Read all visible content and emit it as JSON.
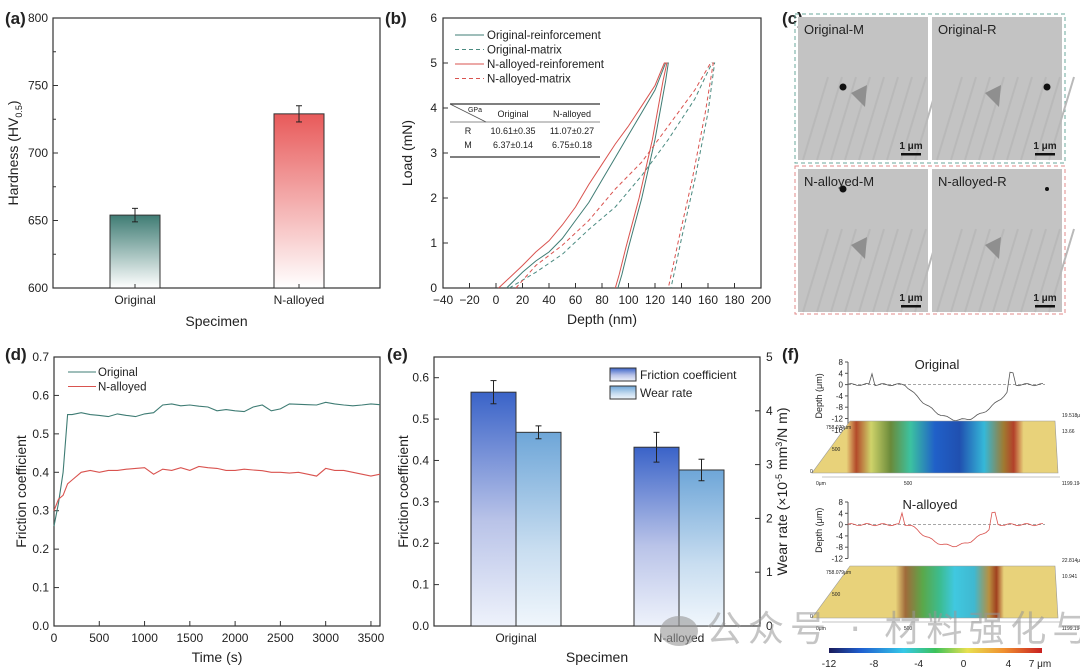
{
  "chart_data": [
    {
      "panel": "(a)",
      "type": "bar",
      "categories": [
        "Original",
        "N-alloyed"
      ],
      "values": [
        654,
        729
      ],
      "errors": [
        5,
        6
      ],
      "colors": [
        "#3f7c74",
        "#e85a5a"
      ],
      "xlabel": "Specimen",
      "ylabel": "Hardness (HV",
      "ylabel_sub": "0.5",
      "ylabel_end": ")",
      "ylim": [
        600,
        800
      ],
      "yticks": [
        "600",
        "650",
        "700",
        "750",
        "800"
      ]
    },
    {
      "panel": "(b)",
      "type": "line",
      "xlabel": "Depth (nm)",
      "ylabel": "Load (mN)",
      "xlim": [
        -40,
        200
      ],
      "ylim": [
        0,
        6
      ],
      "xticks": [
        "-40",
        "-20",
        "0",
        "20",
        "40",
        "60",
        "80",
        "100",
        "120",
        "140",
        "160",
        "180",
        "200"
      ],
      "yticks": [
        "0",
        "1",
        "2",
        "3",
        "4",
        "5",
        "6"
      ],
      "series": [
        {
          "name": "Original-reinforcement",
          "color": "#3f7c74",
          "dash": false,
          "x": [
            8,
            20,
            30,
            40,
            50,
            60,
            70,
            80,
            90,
            100,
            110,
            120,
            128,
            130,
            128,
            120,
            110,
            100,
            95,
            92
          ],
          "y": [
            0,
            0.35,
            0.6,
            0.8,
            1.1,
            1.5,
            1.9,
            2.4,
            2.9,
            3.4,
            3.9,
            4.4,
            5.0,
            5.0,
            4.6,
            3.3,
            2.0,
            0.9,
            0.3,
            0
          ]
        },
        {
          "name": "Original-matrix",
          "color": "#4a8a80",
          "dash": true,
          "x": [
            10,
            30,
            50,
            70,
            90,
            110,
            130,
            150,
            163,
            165,
            160,
            150,
            140,
            135,
            132
          ],
          "y": [
            0,
            0.35,
            0.75,
            1.3,
            1.8,
            2.5,
            3.3,
            4.2,
            5.0,
            5.0,
            3.9,
            2.4,
            1.1,
            0.4,
            0
          ]
        },
        {
          "name": "N-alloyed-reinforement",
          "color": "#d9534f",
          "dash": false,
          "x": [
            2,
            20,
            30,
            40,
            50,
            60,
            70,
            80,
            90,
            100,
            110,
            120,
            127,
            129,
            126,
            118,
            108,
            98,
            93,
            90
          ],
          "y": [
            0,
            0.5,
            0.8,
            1.05,
            1.4,
            1.8,
            2.3,
            2.75,
            3.2,
            3.6,
            4.05,
            4.5,
            5.0,
            5.0,
            4.6,
            3.3,
            2.0,
            0.9,
            0.3,
            0
          ]
        },
        {
          "name": "N-alloyed-matrix",
          "color": "#d9534f",
          "dash": true,
          "x": [
            15,
            30,
            50,
            70,
            90,
            110,
            130,
            150,
            162,
            164,
            158,
            148,
            138,
            133,
            130
          ],
          "y": [
            0,
            0.5,
            0.95,
            1.5,
            2.2,
            2.8,
            3.6,
            4.4,
            5.0,
            5.0,
            3.9,
            2.4,
            1.1,
            0.4,
            0
          ]
        }
      ],
      "inset_table": {
        "corner_label": "GPa",
        "headers": [
          "Original",
          "N-alloyed"
        ],
        "rows": [
          {
            "label": "R",
            "values": [
              "10.61±0.35",
              "11.07±0.27"
            ]
          },
          {
            "label": "M",
            "values": [
              "6.37±0.14",
              "6.75±0.18"
            ]
          }
        ]
      }
    },
    {
      "panel": "(c)",
      "type": "image-grid",
      "images": [
        {
          "label": "Original-M",
          "scale": "1 μm"
        },
        {
          "label": "Original-R",
          "scale": "1 μm"
        },
        {
          "label": "N-alloyed-M",
          "scale": "1 μm"
        },
        {
          "label": "N-alloyed-R",
          "scale": "1 μm"
        }
      ],
      "group_colors": [
        "#6aa79b",
        "#e08a8a"
      ]
    },
    {
      "panel": "(d)",
      "type": "line",
      "xlabel": "Time (s)",
      "ylabel": "Friction coefficient",
      "xlim": [
        0,
        3600
      ],
      "ylim": [
        0,
        0.7
      ],
      "xticks": [
        "0",
        "500",
        "1000",
        "1500",
        "2000",
        "2500",
        "3000",
        "3500"
      ],
      "yticks": [
        "0.0",
        "0.1",
        "0.2",
        "0.3",
        "0.4",
        "0.5",
        "0.6",
        "0.7"
      ],
      "series": [
        {
          "name": "Original",
          "color": "#3f7c74",
          "x": [
            0,
            50,
            100,
            150,
            200,
            300,
            400,
            500,
            600,
            700,
            800,
            900,
            1000,
            1100,
            1200,
            1300,
            1400,
            1500,
            1600,
            1700,
            1800,
            1900,
            2000,
            2100,
            2200,
            2300,
            2400,
            2500,
            2600,
            2700,
            2800,
            2900,
            3000,
            3100,
            3200,
            3300,
            3400,
            3500,
            3600
          ],
          "y": [
            0.26,
            0.32,
            0.4,
            0.55,
            0.55,
            0.555,
            0.55,
            0.548,
            0.545,
            0.552,
            0.548,
            0.545,
            0.552,
            0.555,
            0.575,
            0.578,
            0.573,
            0.575,
            0.572,
            0.57,
            0.56,
            0.563,
            0.56,
            0.558,
            0.57,
            0.575,
            0.56,
            0.565,
            0.578,
            0.577,
            0.576,
            0.575,
            0.582,
            0.578,
            0.575,
            0.573,
            0.575,
            0.578,
            0.576
          ]
        },
        {
          "name": "N-alloyed",
          "color": "#d9534f",
          "x": [
            0,
            50,
            100,
            150,
            200,
            300,
            400,
            500,
            600,
            700,
            800,
            900,
            1000,
            1100,
            1200,
            1300,
            1400,
            1500,
            1600,
            1700,
            1800,
            1900,
            2000,
            2100,
            2200,
            2300,
            2400,
            2500,
            2600,
            2700,
            2800,
            2900,
            3000,
            3100,
            3200,
            3300,
            3400,
            3500,
            3600
          ],
          "y": [
            0.3,
            0.33,
            0.34,
            0.37,
            0.38,
            0.4,
            0.405,
            0.4,
            0.405,
            0.405,
            0.408,
            0.41,
            0.412,
            0.395,
            0.408,
            0.405,
            0.412,
            0.405,
            0.415,
            0.412,
            0.41,
            0.405,
            0.405,
            0.408,
            0.406,
            0.404,
            0.4,
            0.4,
            0.398,
            0.4,
            0.395,
            0.39,
            0.41,
            0.405,
            0.405,
            0.4,
            0.395,
            0.39,
            0.395
          ]
        }
      ]
    },
    {
      "panel": "(e)",
      "type": "bar",
      "categories": [
        "Original",
        "N-alloyed"
      ],
      "series": [
        {
          "name": "Friction coefficient",
          "axis": "left",
          "values": [
            0.565,
            0.432
          ],
          "errors": [
            0.028,
            0.036
          ],
          "color": "#3a63c8"
        },
        {
          "name": "Wear rate",
          "axis": "right",
          "values": [
            3.6,
            2.9
          ],
          "errors": [
            0.12,
            0.2
          ],
          "color": "#6ea6d8"
        }
      ],
      "xlabel": "Specimen",
      "ylabel": "Friction coefficient",
      "ylabel_right": "Wear rate (×10",
      "ylabel_right_sup": "-5",
      "ylabel_right_mid": " mm",
      "ylabel_right_sup2": "3",
      "ylabel_right_end": "/N m)",
      "ylim": [
        0,
        0.65
      ],
      "ylim_right": [
        0,
        5
      ],
      "yticks": [
        "0.0",
        "0.1",
        "0.2",
        "0.3",
        "0.4",
        "0.5",
        "0.6"
      ],
      "yticks_right": [
        "0",
        "1",
        "2",
        "3",
        "4",
        "5"
      ]
    },
    {
      "panel": "(f)",
      "type": "surface-profile",
      "profiles": [
        {
          "title": "Original",
          "ylabel": "Depth (μm)",
          "yticks": [
            "8",
            "4",
            "0",
            "-4",
            "-8",
            "-12",
            "-16"
          ],
          "color": "#555555",
          "axis_labels": [
            "758.079μm",
            "500",
            "0",
            "0μm",
            "500",
            "1199.194",
            "19.518μm",
            "13.66"
          ]
        },
        {
          "title": "N-alloyed",
          "ylabel": "Depth (μm)",
          "yticks": [
            "8",
            "4",
            "0",
            "-4",
            "-8",
            "-12"
          ],
          "color": "#d9534f",
          "axis_labels": [
            "758.079μm",
            "500",
            "0",
            "0μm",
            "500",
            "1199.194",
            "22.814μm",
            "10.941"
          ]
        }
      ],
      "colorbar": {
        "ticks": [
          "-12",
          "-8",
          "-4",
          "0",
          "4",
          "7 μm"
        ],
        "min": -12,
        "max": 7
      }
    }
  ],
  "panel_labels": [
    "(a)",
    "(b)",
    "(c)",
    "(d)",
    "(e)",
    "(f)"
  ],
  "watermark": "公众号 · 材料强化与防护"
}
